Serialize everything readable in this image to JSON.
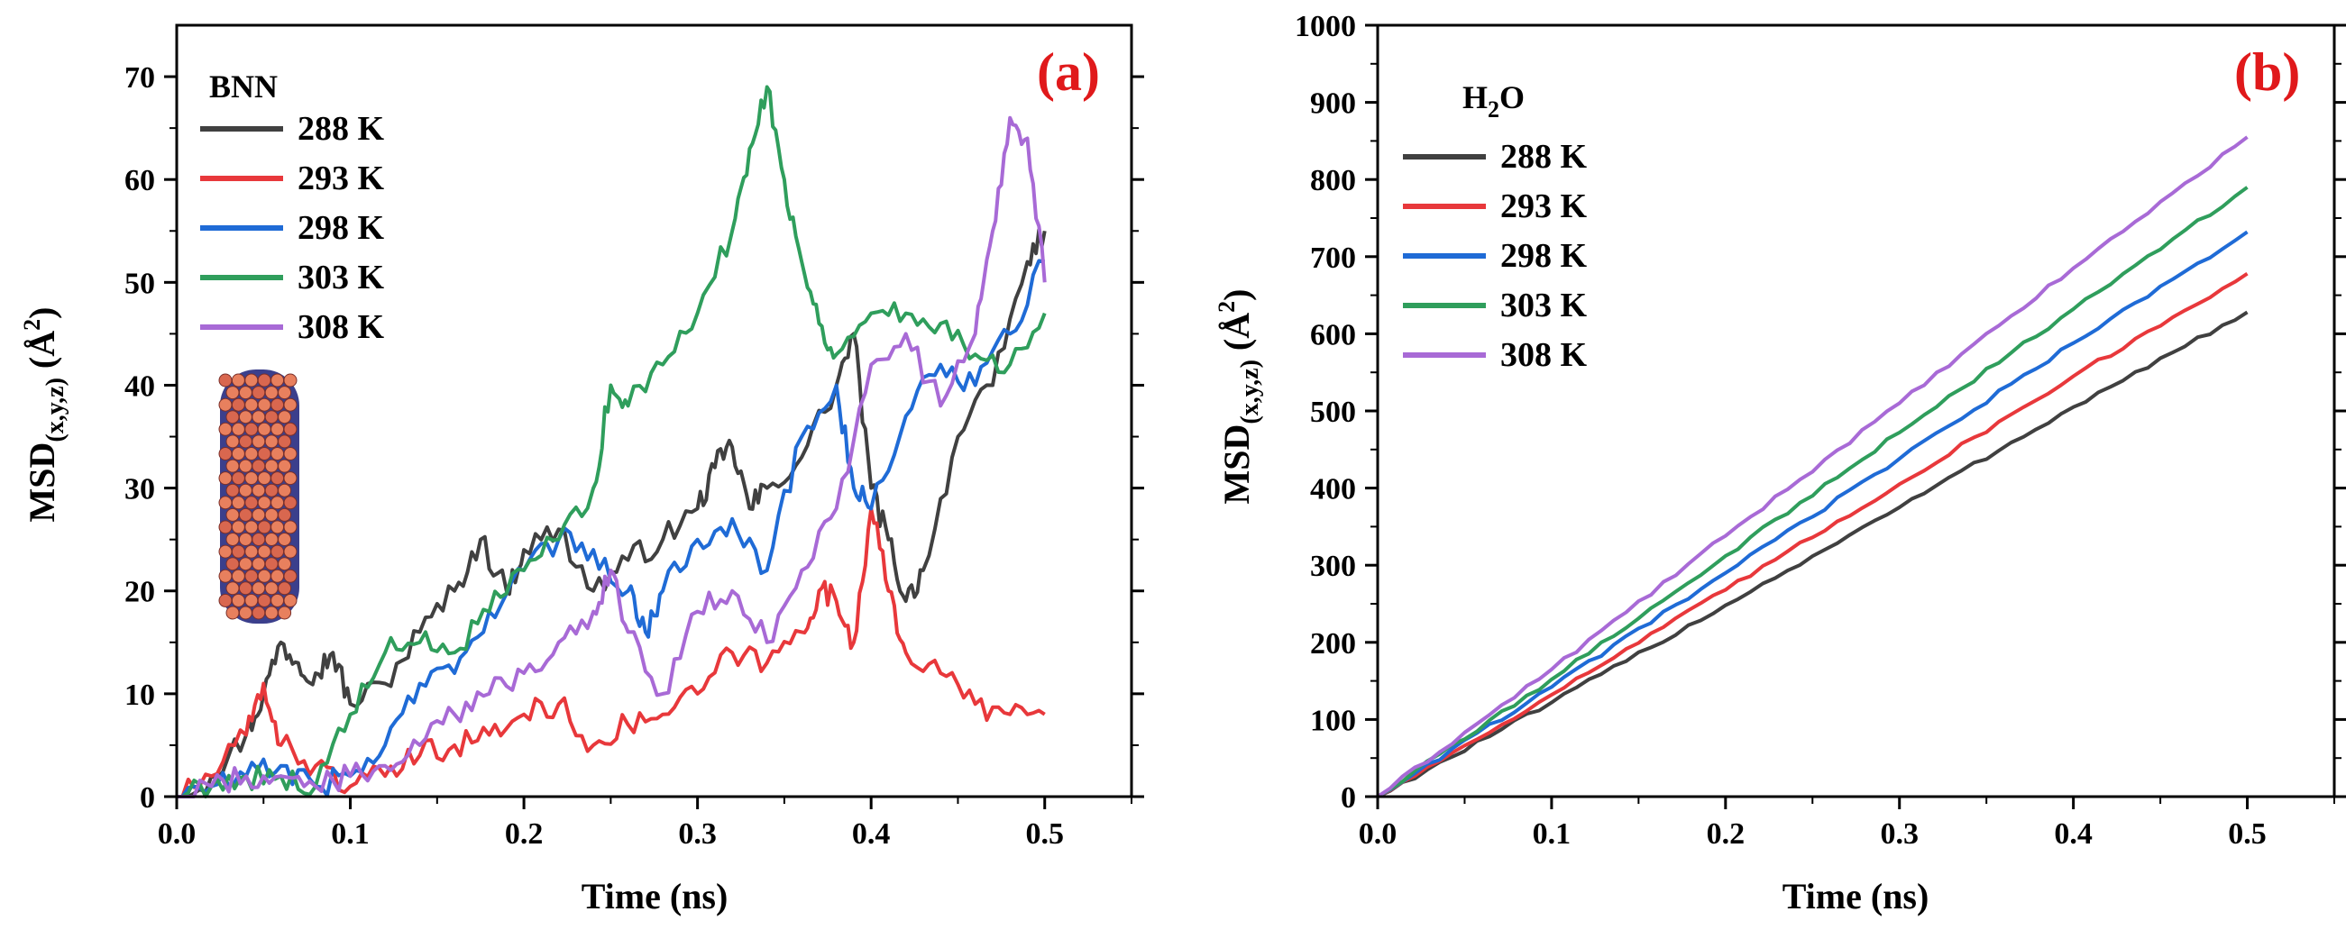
{
  "chart_data": [
    {
      "type": "line",
      "panel_label": "(a)",
      "legend_title": "BNN",
      "legend_position": "top-left",
      "xlabel": "Time (ns)",
      "ylabel": "MSD",
      "ylabel_subscript": "(x,y,z)",
      "ylabel_unit": "(Å",
      "ylabel_unit_sup": "2",
      "ylabel_unit_close": ")",
      "xlim": [
        0.0,
        0.55
      ],
      "ylim": [
        0,
        75
      ],
      "xticks": [
        0.0,
        0.1,
        0.2,
        0.3,
        0.4,
        0.5
      ],
      "xtick_labels": [
        "0.0",
        "0.1",
        "0.2",
        "0.3",
        "0.4",
        "0.5"
      ],
      "yticks": [
        0,
        10,
        20,
        30,
        40,
        50,
        60,
        70
      ],
      "ytick_labels": [
        "0",
        "10",
        "20",
        "30",
        "40",
        "50",
        "60",
        "70"
      ],
      "grid": false,
      "inset": "boron-nitride-nanotube-structure",
      "series": [
        {
          "name": "288 K",
          "color": "#404040",
          "x": [
            0.0,
            0.02,
            0.04,
            0.05,
            0.06,
            0.07,
            0.08,
            0.09,
            0.1,
            0.12,
            0.14,
            0.16,
            0.175,
            0.19,
            0.2,
            0.22,
            0.24,
            0.26,
            0.28,
            0.3,
            0.31,
            0.32,
            0.33,
            0.34,
            0.36,
            0.38,
            0.39,
            0.4,
            0.41,
            0.42,
            0.43,
            0.45,
            0.47,
            0.49,
            0.5
          ],
          "y": [
            0,
            2,
            6,
            10,
            15,
            13,
            12,
            14,
            9,
            11,
            16,
            20,
            25,
            20,
            24,
            26,
            20,
            23,
            25,
            28,
            32,
            34,
            28,
            30,
            33,
            40,
            45,
            30,
            25,
            19,
            22,
            35,
            40,
            52,
            55
          ]
        },
        {
          "name": "293 K",
          "color": "#e8383b",
          "x": [
            0.0,
            0.02,
            0.04,
            0.05,
            0.06,
            0.08,
            0.1,
            0.12,
            0.14,
            0.16,
            0.18,
            0.2,
            0.22,
            0.24,
            0.26,
            0.28,
            0.3,
            0.32,
            0.34,
            0.36,
            0.37,
            0.38,
            0.39,
            0.4,
            0.41,
            0.42,
            0.44,
            0.46,
            0.48,
            0.5
          ],
          "y": [
            0,
            2,
            6,
            11,
            5,
            3,
            1,
            2,
            4,
            5,
            6,
            8,
            9,
            5,
            7,
            8,
            10,
            14,
            13,
            16,
            20,
            19,
            15,
            28,
            20,
            14,
            12,
            9,
            8,
            8
          ]
        },
        {
          "name": "298 K",
          "color": "#1f6bd6",
          "x": [
            0.0,
            0.02,
            0.04,
            0.06,
            0.08,
            0.1,
            0.12,
            0.14,
            0.16,
            0.18,
            0.2,
            0.22,
            0.24,
            0.26,
            0.27,
            0.28,
            0.3,
            0.32,
            0.34,
            0.36,
            0.38,
            0.39,
            0.4,
            0.42,
            0.44,
            0.46,
            0.48,
            0.5
          ],
          "y": [
            0,
            1,
            2,
            3,
            1,
            2,
            5,
            11,
            12,
            18,
            22,
            25,
            24,
            20,
            16,
            20,
            25,
            27,
            22,
            35,
            40,
            30,
            28,
            37,
            42,
            40,
            45,
            52
          ]
        },
        {
          "name": "303 K",
          "color": "#2f9e5c",
          "x": [
            0.0,
            0.02,
            0.04,
            0.06,
            0.08,
            0.1,
            0.12,
            0.14,
            0.16,
            0.18,
            0.2,
            0.22,
            0.24,
            0.25,
            0.26,
            0.28,
            0.3,
            0.32,
            0.33,
            0.34,
            0.35,
            0.36,
            0.37,
            0.38,
            0.4,
            0.42,
            0.44,
            0.46,
            0.48,
            0.5
          ],
          "y": [
            0,
            1,
            2,
            2,
            1,
            8,
            14,
            15,
            14,
            18,
            22,
            25,
            30,
            40,
            38,
            42,
            47,
            55,
            63,
            69,
            60,
            52,
            46,
            43,
            47,
            47,
            46,
            43,
            42,
            47
          ]
        },
        {
          "name": "308 K",
          "color": "#a86ad6",
          "x": [
            0.0,
            0.02,
            0.04,
            0.06,
            0.08,
            0.1,
            0.12,
            0.14,
            0.16,
            0.18,
            0.2,
            0.22,
            0.24,
            0.25,
            0.26,
            0.28,
            0.3,
            0.32,
            0.34,
            0.36,
            0.38,
            0.4,
            0.42,
            0.44,
            0.46,
            0.47,
            0.48,
            0.49,
            0.5
          ],
          "y": [
            0,
            1,
            2,
            2,
            1,
            2,
            3,
            5,
            8,
            10,
            12,
            15,
            18,
            22,
            16,
            10,
            18,
            20,
            15,
            22,
            28,
            42,
            45,
            38,
            45,
            55,
            66,
            64,
            50
          ]
        }
      ]
    },
    {
      "type": "line",
      "panel_label": "(b)",
      "legend_title_main": "H",
      "legend_title_sub": "2",
      "legend_title_tail": "O",
      "legend_position": "top-left",
      "xlabel": "Time (ns)",
      "ylabel": "MSD",
      "ylabel_subscript": "(x,y,z)",
      "ylabel_unit": "(Å",
      "ylabel_unit_sup": "2",
      "ylabel_unit_close": ")",
      "xlim": [
        0.0,
        0.55
      ],
      "ylim": [
        0,
        1000
      ],
      "xticks": [
        0.0,
        0.1,
        0.2,
        0.3,
        0.4,
        0.5
      ],
      "xtick_labels": [
        "0.0",
        "0.1",
        "0.2",
        "0.3",
        "0.4",
        "0.5"
      ],
      "yticks": [
        0,
        100,
        200,
        300,
        400,
        500,
        600,
        700,
        800,
        900,
        1000
      ],
      "ytick_labels": [
        "0",
        "100",
        "200",
        "300",
        "400",
        "500",
        "600",
        "700",
        "800",
        "900",
        "1000"
      ],
      "grid": false,
      "series": [
        {
          "name": "288 K",
          "color": "#404040",
          "x": [
            0.0,
            0.1,
            0.2,
            0.3,
            0.4,
            0.5
          ],
          "y": [
            0,
            122,
            248,
            375,
            505,
            628
          ]
        },
        {
          "name": "293 K",
          "color": "#e8383b",
          "x": [
            0.0,
            0.1,
            0.2,
            0.3,
            0.4,
            0.5
          ],
          "y": [
            0,
            132,
            268,
            405,
            545,
            678
          ]
        },
        {
          "name": "298 K",
          "color": "#1f6bd6",
          "x": [
            0.0,
            0.1,
            0.2,
            0.3,
            0.4,
            0.5
          ],
          "y": [
            0,
            142,
            290,
            438,
            588,
            732
          ]
        },
        {
          "name": "303 K",
          "color": "#2f9e5c",
          "x": [
            0.0,
            0.1,
            0.2,
            0.3,
            0.4,
            0.5
          ],
          "y": [
            0,
            152,
            312,
            472,
            632,
            790
          ]
        },
        {
          "name": "308 K",
          "color": "#a86ad6",
          "x": [
            0.0,
            0.1,
            0.2,
            0.3,
            0.4,
            0.5
          ],
          "y": [
            0,
            165,
            338,
            510,
            685,
            855
          ]
        }
      ]
    }
  ]
}
